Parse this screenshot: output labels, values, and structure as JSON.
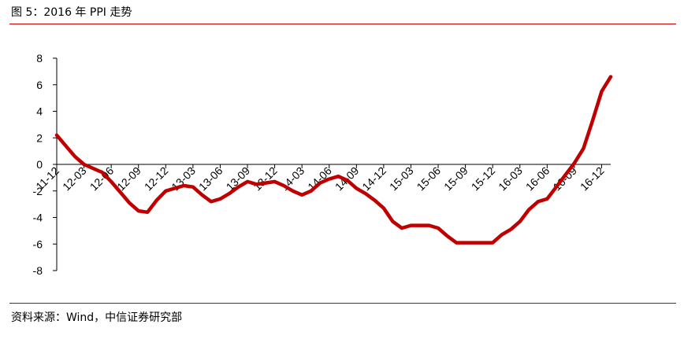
{
  "header": {
    "figure_label": "图 5：2016 年 PPI 走势"
  },
  "footer": {
    "source": "资料来源：Wind，中信证券研究部"
  },
  "colors": {
    "series": "#c00000",
    "rule": "#c00000",
    "axis": "#000000"
  },
  "chart_data": {
    "type": "line",
    "title": "2016 年 PPI 走势",
    "xlabel": "",
    "ylabel": "",
    "ylim": [
      -8,
      8
    ],
    "yticks": [
      -8,
      -6,
      -4,
      -2,
      0,
      2,
      4,
      6,
      8
    ],
    "ytick_labels": [
      "-8",
      "-6",
      "-4",
      "-2",
      "0",
      "2",
      "4",
      "6",
      "8"
    ],
    "xtick_labels": [
      "11-12",
      "12-03",
      "12-06",
      "12-09",
      "12-12",
      "13-03",
      "13-06",
      "13-09",
      "13-12",
      "14-03",
      "14-06",
      "14-09",
      "14-12",
      "15-03",
      "15-06",
      "15-09",
      "15-12",
      "16-03",
      "16-06",
      "16-09",
      "16-12"
    ],
    "grid": false,
    "legend": "none",
    "series": [
      {
        "x": [
          "11-12",
          "12-01",
          "12-02",
          "12-03",
          "12-04",
          "12-05",
          "12-06",
          "12-07",
          "12-08",
          "12-09",
          "12-10",
          "12-11",
          "12-12",
          "13-01",
          "13-02",
          "13-03",
          "13-04",
          "13-05",
          "13-06",
          "13-07",
          "13-08",
          "13-09",
          "13-10",
          "13-11",
          "13-12",
          "14-01",
          "14-02",
          "14-03",
          "14-04",
          "14-05",
          "14-06",
          "14-07",
          "14-08",
          "14-09",
          "14-10",
          "14-11",
          "14-12",
          "15-01",
          "15-02",
          "15-03",
          "15-04",
          "15-05",
          "15-06",
          "15-07",
          "15-08",
          "15-09",
          "15-10",
          "15-11",
          "15-12",
          "16-01",
          "16-02",
          "16-03",
          "16-04",
          "16-05",
          "16-06",
          "16-07",
          "16-08",
          "16-09",
          "16-10",
          "16-11",
          "16-12",
          "17-01"
        ],
        "values": [
          2.2,
          1.4,
          0.6,
          0,
          -0.3,
          -0.6,
          -1.3,
          -2.1,
          -2.9,
          -3.5,
          -3.6,
          -2.7,
          -2.0,
          -1.8,
          -1.6,
          -1.7,
          -2.3,
          -2.8,
          -2.6,
          -2.2,
          -1.7,
          -1.3,
          -1.5,
          -1.4,
          -1.3,
          -1.6,
          -2.0,
          -2.3,
          -2.0,
          -1.4,
          -1.1,
          -0.9,
          -1.2,
          -1.8,
          -2.2,
          -2.7,
          -3.3,
          -4.3,
          -4.8,
          -4.6,
          -4.6,
          -4.6,
          -4.8,
          -5.4,
          -5.9,
          -5.9,
          -5.9,
          -5.9,
          -5.9,
          -5.3,
          -4.9,
          -4.3,
          -3.4,
          -2.8,
          -2.6,
          -1.7,
          -0.8,
          0.1,
          1.2,
          3.3,
          5.5,
          6.6
        ]
      }
    ]
  }
}
